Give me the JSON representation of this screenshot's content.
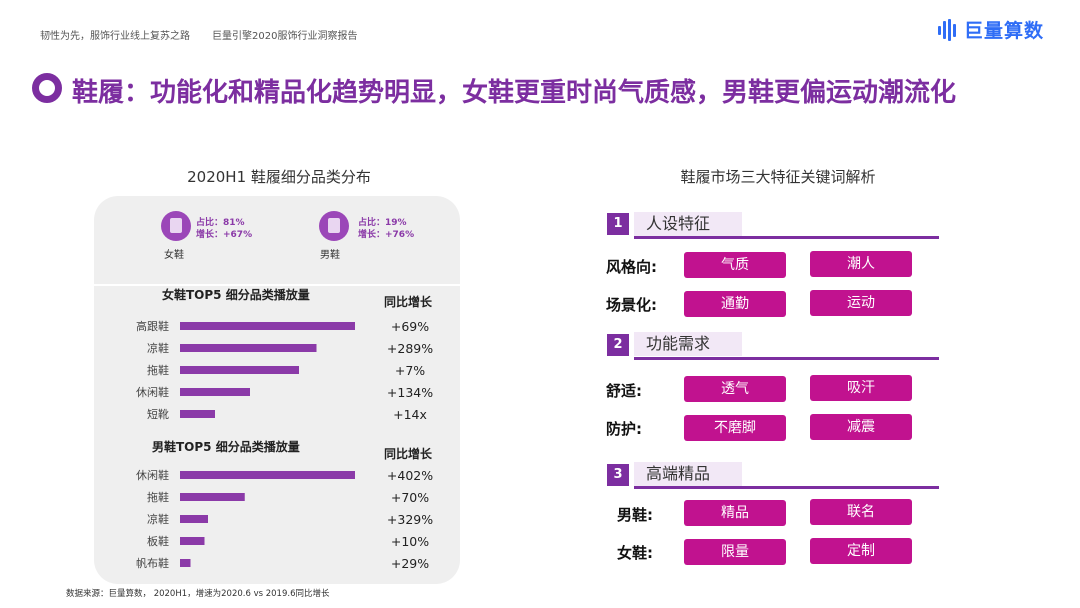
{
  "header": {
    "tagline": "韧性为先，服饰行业线上复苏之路",
    "report": "巨量引擎2020服饰行业洞察报告",
    "brand": "巨量算数"
  },
  "title": "鞋履：功能化和精品化趋势明显，女鞋更重时尚气质感，男鞋更偏运动潮流化",
  "left_panel": {
    "title": "2020H1 鞋履细分品类分布",
    "women": {
      "name": "女鞋",
      "share": "占比：81%",
      "growth": "增长：+67%"
    },
    "men": {
      "name": "男鞋",
      "share": "占比：19%",
      "growth": "增长：+76%"
    },
    "women_section_title": "女鞋TOP5 细分品类播放量",
    "men_section_title": "男鞋TOP5 细分品类播放量",
    "yoy_header": "同比增长"
  },
  "chart_data": [
    {
      "type": "bar",
      "title": "女鞋TOP5 细分品类播放量",
      "categories": [
        "高跟鞋",
        "凉鞋",
        "拖鞋",
        "休闲鞋",
        "短靴"
      ],
      "values": [
        100,
        78,
        68,
        40,
        20
      ],
      "yoy_labels": [
        "+69%",
        "+289%",
        "+7%",
        "+134%",
        "+14x"
      ],
      "color": "#8b3aa8"
    },
    {
      "type": "bar",
      "title": "男鞋TOP5 细分品类播放量",
      "categories": [
        "休闲鞋",
        "拖鞋",
        "凉鞋",
        "板鞋",
        "帆布鞋"
      ],
      "values": [
        100,
        37,
        16,
        14,
        6
      ],
      "yoy_labels": [
        "+402%",
        "+70%",
        "+329%",
        "+10%",
        "+29%"
      ],
      "color": "#8b3aa8"
    }
  ],
  "source": "数据来源：巨量算数， 2020H1，增速为2020.6 vs 2019.6同比增长",
  "right_panel": {
    "title": "鞋履市场三大特征关键词解析",
    "sections": [
      {
        "num": "1",
        "label": "人设特征",
        "rows": [
          {
            "label": "风格向:",
            "pills": [
              "气质",
              "潮人"
            ]
          },
          {
            "label": "场景化:",
            "pills": [
              "通勤",
              "运动"
            ]
          }
        ]
      },
      {
        "num": "2",
        "label": "功能需求",
        "rows": [
          {
            "label": "舒适:",
            "pills": [
              "透气",
              "吸汗"
            ]
          },
          {
            "label": "防护:",
            "pills": [
              "不磨脚",
              "减震"
            ]
          }
        ]
      },
      {
        "num": "3",
        "label": "高端精品",
        "rows": [
          {
            "label": "男鞋:",
            "pills": [
              "精品",
              "联名"
            ]
          },
          {
            "label": "女鞋:",
            "pills": [
              "限量",
              "定制"
            ]
          }
        ]
      }
    ]
  }
}
